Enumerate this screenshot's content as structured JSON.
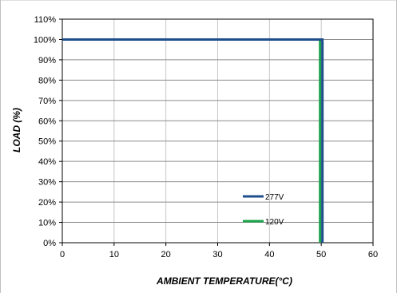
{
  "chart_data": {
    "type": "line",
    "title": "",
    "xlabel": "AMBIENT TEMPERATURE(°C)",
    "ylabel": "LOAD (%)",
    "xlim": [
      0,
      60
    ],
    "ylim": [
      0,
      110
    ],
    "x_ticks": [
      0,
      10,
      20,
      30,
      40,
      50,
      60
    ],
    "x_tick_labels": [
      "0",
      "10",
      "20",
      "30",
      "40",
      "50",
      "60"
    ],
    "y_ticks": [
      0,
      10,
      20,
      30,
      40,
      50,
      60,
      70,
      80,
      90,
      100,
      110
    ],
    "y_tick_labels": [
      "0%",
      "10%",
      "20%",
      "30%",
      "40%",
      "50%",
      "60%",
      "70%",
      "80%",
      "90%",
      "100%",
      "110%"
    ],
    "grid": true,
    "legend_position": "bottom-right",
    "series": [
      {
        "name": "277V",
        "color": "#1f4e8c",
        "points": [
          [
            0,
            100
          ],
          [
            50,
            100
          ],
          [
            50,
            0
          ]
        ]
      },
      {
        "name": "120V",
        "color": "#1aa34a",
        "points": [
          [
            0,
            100
          ],
          [
            50,
            100
          ],
          [
            50,
            0
          ]
        ]
      }
    ]
  }
}
